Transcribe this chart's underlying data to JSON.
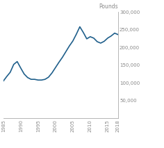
{
  "years": [
    1985,
    1986,
    1987,
    1988,
    1989,
    1990,
    1991,
    1992,
    1993,
    1994,
    1995,
    1996,
    1997,
    1998,
    1999,
    2000,
    2001,
    2002,
    2003,
    2004,
    2005,
    2006,
    2007,
    2008,
    2009,
    2010,
    2011,
    2012,
    2013,
    2014,
    2015,
    2016,
    2017,
    2018
  ],
  "values": [
    105000,
    118000,
    130000,
    152000,
    160000,
    142000,
    125000,
    115000,
    110000,
    110000,
    108000,
    108000,
    110000,
    116000,
    128000,
    143000,
    158000,
    172000,
    188000,
    204000,
    218000,
    237000,
    258000,
    242000,
    224000,
    230000,
    226000,
    216000,
    212000,
    217000,
    226000,
    232000,
    240000,
    236000
  ],
  "line_color": "#1f5f8b",
  "ylabel": "Pounds",
  "ylim": [
    0,
    300000
  ],
  "yticks": [
    50000,
    100000,
    150000,
    200000,
    250000,
    300000
  ],
  "ytick_labels": [
    "50,000",
    "100,000",
    "150,000",
    "200,000",
    "250,000",
    "300,000"
  ],
  "xlim": [
    1985,
    2018
  ],
  "xticks": [
    1985,
    1990,
    1995,
    2000,
    2005,
    2010,
    2015,
    2018
  ],
  "background_color": "#ffffff",
  "linewidth": 1.2,
  "spine_color": "#aaaaaa",
  "tick_color": "#888888",
  "label_color": "#888888"
}
